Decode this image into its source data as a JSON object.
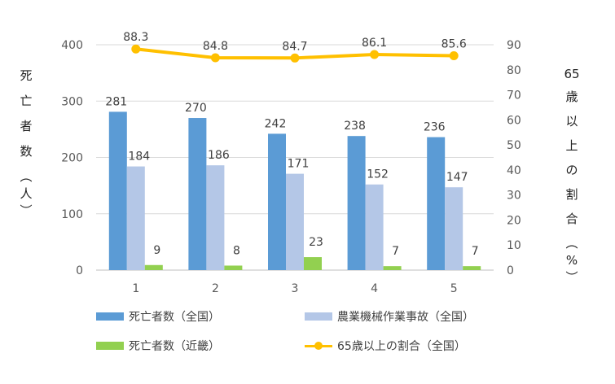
{
  "chart_data": {
    "type": "bar+line",
    "categories": [
      "1",
      "2",
      "3",
      "4",
      "5"
    ],
    "series": [
      {
        "name": "死亡者数（全国）",
        "type": "bar",
        "axis": "left",
        "color": "#5B9BD5",
        "values": [
          281,
          270,
          242,
          238,
          236
        ]
      },
      {
        "name": "農業機械作業事故（全国）",
        "type": "bar",
        "axis": "left",
        "color": "#B4C7E7",
        "values": [
          184,
          186,
          171,
          152,
          147
        ]
      },
      {
        "name": "死亡者数（近畿）",
        "type": "bar",
        "axis": "left",
        "color": "#92D050",
        "values": [
          9,
          8,
          23,
          7,
          7
        ]
      },
      {
        "name": "65歳以上の割合（全国）",
        "type": "line",
        "axis": "right",
        "color": "#FFC000",
        "values": [
          88.3,
          84.8,
          84.7,
          86.1,
          85.6
        ]
      }
    ],
    "left_axis": {
      "label": "死亡者数（人）",
      "label_chars": [
        "死",
        "亡",
        "者",
        "数",
        "︵",
        "人",
        "︶"
      ],
      "ylim": [
        0,
        400
      ],
      "ticks": [
        0,
        100,
        200,
        300,
        400
      ]
    },
    "right_axis": {
      "label_prefix": "65",
      "label_chars": [
        "歳",
        "以",
        "上",
        "の",
        "割",
        "合",
        "︵",
        "%",
        "︶"
      ],
      "ylim": [
        0,
        90
      ],
      "ticks": [
        0,
        10,
        20,
        30,
        40,
        50,
        60,
        70,
        80,
        90
      ]
    },
    "grid": true,
    "legend_position": "bottom"
  }
}
